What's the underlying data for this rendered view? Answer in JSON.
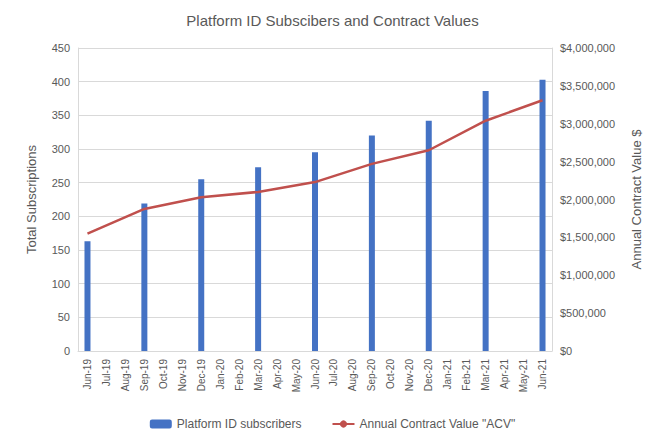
{
  "chart_data": {
    "type": "bar",
    "title": "Platform ID Subscibers and Contract Values",
    "x_label": "",
    "y_label": "Total Subscriptions",
    "y2_label": "Annual Contract Value $",
    "categories": [
      "Jun-19",
      "Jul-19",
      "Aug-19",
      "Sep-19",
      "Oct-19",
      "Nov-19",
      "Dec-19",
      "Jan-20",
      "Feb-20",
      "Mar-20",
      "Apr-20",
      "May-20",
      "Jun-20",
      "Jul-20",
      "Aug-20",
      "Sep-20",
      "Oct-20",
      "Nov-20",
      "Dec-20",
      "Jan-21",
      "Feb-21",
      "Mar-21",
      "Apr-21",
      "May-21",
      "Jun-21"
    ],
    "series": [
      {
        "name": "Platform ID subscribers",
        "type": "bar",
        "color": "#4472c4",
        "values": [
          163,
          null,
          null,
          219,
          null,
          null,
          255,
          null,
          null,
          273,
          null,
          null,
          295,
          null,
          null,
          320,
          null,
          null,
          342,
          null,
          null,
          386,
          null,
          null,
          403
        ]
      },
      {
        "name": "Annual Contract Value \"ACV\"",
        "type": "line",
        "color": "#c0504d",
        "axis": "y2",
        "marker": "none",
        "line_style": "solid",
        "values": [
          1550000,
          null,
          null,
          1875000,
          null,
          null,
          2030000,
          null,
          null,
          2100000,
          null,
          null,
          2230000,
          null,
          null,
          2470000,
          null,
          null,
          2650000,
          null,
          null,
          3040000,
          null,
          null,
          3310000
        ]
      }
    ],
    "ylim": [
      0,
      450
    ],
    "yticks": [
      0,
      50,
      100,
      150,
      200,
      250,
      300,
      350,
      400,
      450
    ],
    "y2lim": [
      0,
      4000000
    ],
    "y2ticks": [
      {
        "value": 0,
        "label": "$0"
      },
      {
        "value": 500000,
        "label": "$500,000"
      },
      {
        "value": 1000000,
        "label": "$1,000,000"
      },
      {
        "value": 1500000,
        "label": "$1,500,000"
      },
      {
        "value": 2000000,
        "label": "$2,000,000"
      },
      {
        "value": 2500000,
        "label": "$2,500,000"
      },
      {
        "value": 3000000,
        "label": "$3,000,000"
      },
      {
        "value": 3500000,
        "label": "$3,500,000"
      },
      {
        "value": 4000000,
        "label": "$4,000,000"
      }
    ],
    "grid": true,
    "legend": "bottom"
  }
}
